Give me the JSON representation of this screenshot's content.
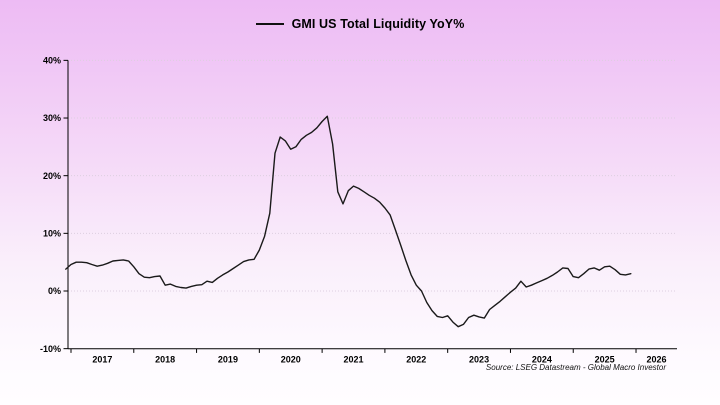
{
  "header": {
    "title": "GMI US Total Liquidity YoY%"
  },
  "footer": {
    "source": "Source: LSEG Datastream - Global Macro Investor"
  },
  "colors": {
    "background_top": "#edbbf4",
    "background_bottom": "#fffdff",
    "line": "#1a1a1a",
    "axis": "#000000",
    "gridline": "#ddcfe0",
    "text": "#000000"
  },
  "chart_data": {
    "type": "line",
    "title": "GMI US Total Liquidity YoY%",
    "xlabel": "",
    "ylabel": "",
    "x_range": [
      2016.95,
      2026.65
    ],
    "y_range": [
      -10,
      40
    ],
    "grid": "dotted horizontal gridlines every 10%",
    "legend_position": "top-center",
    "y_ticks": [
      {
        "value": 40,
        "label": "40%"
      },
      {
        "value": 30,
        "label": "30%"
      },
      {
        "value": 20,
        "label": "20%"
      },
      {
        "value": 10,
        "label": "10%"
      },
      {
        "value": 0,
        "label": "0%"
      },
      {
        "value": -10,
        "label": "-10%"
      }
    ],
    "x_ticks": [
      {
        "year": 2017,
        "label": "2017"
      },
      {
        "year": 2018,
        "label": "2018"
      },
      {
        "year": 2019,
        "label": "2019"
      },
      {
        "year": 2020,
        "label": "2020"
      },
      {
        "year": 2021,
        "label": "2021"
      },
      {
        "year": 2022,
        "label": "2022"
      },
      {
        "year": 2023,
        "label": "2023"
      },
      {
        "year": 2024,
        "label": "2024"
      },
      {
        "year": 2025,
        "label": "2025"
      },
      {
        "year": 2026,
        "label": "2026"
      }
    ],
    "series": [
      {
        "name": "GMI US Total Liquidity YoY%",
        "color": "#1a1a1a",
        "points": [
          [
            2016.917,
            3.8
          ],
          [
            2017.0,
            4.6
          ],
          [
            2017.083,
            5.0
          ],
          [
            2017.167,
            5.0
          ],
          [
            2017.25,
            4.9
          ],
          [
            2017.333,
            4.6
          ],
          [
            2017.417,
            4.3
          ],
          [
            2017.5,
            4.5
          ],
          [
            2017.583,
            4.8
          ],
          [
            2017.667,
            5.2
          ],
          [
            2017.75,
            5.3
          ],
          [
            2017.833,
            5.4
          ],
          [
            2017.917,
            5.2
          ],
          [
            2018.0,
            4.2
          ],
          [
            2018.083,
            3.0
          ],
          [
            2018.167,
            2.4
          ],
          [
            2018.25,
            2.3
          ],
          [
            2018.333,
            2.5
          ],
          [
            2018.417,
            2.6
          ],
          [
            2018.5,
            1.0
          ],
          [
            2018.583,
            1.2
          ],
          [
            2018.667,
            0.8
          ],
          [
            2018.75,
            0.6
          ],
          [
            2018.833,
            0.5
          ],
          [
            2018.917,
            0.8
          ],
          [
            2019.0,
            1.0
          ],
          [
            2019.083,
            1.1
          ],
          [
            2019.167,
            1.7
          ],
          [
            2019.25,
            1.5
          ],
          [
            2019.333,
            2.2
          ],
          [
            2019.417,
            2.8
          ],
          [
            2019.5,
            3.3
          ],
          [
            2019.583,
            3.9
          ],
          [
            2019.667,
            4.5
          ],
          [
            2019.75,
            5.1
          ],
          [
            2019.833,
            5.4
          ],
          [
            2019.917,
            5.5
          ],
          [
            2020.0,
            7.1
          ],
          [
            2020.083,
            9.5
          ],
          [
            2020.167,
            13.5
          ],
          [
            2020.25,
            23.9
          ],
          [
            2020.333,
            26.7
          ],
          [
            2020.417,
            26.0
          ],
          [
            2020.5,
            24.6
          ],
          [
            2020.583,
            25.0
          ],
          [
            2020.667,
            26.3
          ],
          [
            2020.75,
            27.0
          ],
          [
            2020.833,
            27.5
          ],
          [
            2020.917,
            28.3
          ],
          [
            2021.0,
            29.4
          ],
          [
            2021.083,
            30.3
          ],
          [
            2021.167,
            25.5
          ],
          [
            2021.25,
            17.2
          ],
          [
            2021.333,
            15.1
          ],
          [
            2021.417,
            17.4
          ],
          [
            2021.5,
            18.2
          ],
          [
            2021.583,
            17.8
          ],
          [
            2021.667,
            17.2
          ],
          [
            2021.75,
            16.6
          ],
          [
            2021.833,
            16.1
          ],
          [
            2021.917,
            15.4
          ],
          [
            2022.0,
            14.4
          ],
          [
            2022.083,
            13.2
          ],
          [
            2022.167,
            10.6
          ],
          [
            2022.25,
            8.0
          ],
          [
            2022.333,
            5.3
          ],
          [
            2022.417,
            2.8
          ],
          [
            2022.5,
            1.0
          ],
          [
            2022.583,
            0.0
          ],
          [
            2022.667,
            -2.0
          ],
          [
            2022.75,
            -3.4
          ],
          [
            2022.833,
            -4.4
          ],
          [
            2022.917,
            -4.6
          ],
          [
            2023.0,
            -4.3
          ],
          [
            2023.083,
            -5.4
          ],
          [
            2023.167,
            -6.2
          ],
          [
            2023.25,
            -5.8
          ],
          [
            2023.333,
            -4.6
          ],
          [
            2023.417,
            -4.2
          ],
          [
            2023.5,
            -4.5
          ],
          [
            2023.583,
            -4.7
          ],
          [
            2023.667,
            -3.2
          ],
          [
            2023.75,
            -2.5
          ],
          [
            2023.833,
            -1.8
          ],
          [
            2023.917,
            -1.0
          ],
          [
            2024.0,
            -0.2
          ],
          [
            2024.083,
            0.5
          ],
          [
            2024.167,
            1.7
          ],
          [
            2024.25,
            0.7
          ],
          [
            2024.333,
            1.0
          ],
          [
            2024.417,
            1.4
          ],
          [
            2024.5,
            1.8
          ],
          [
            2024.583,
            2.2
          ],
          [
            2024.667,
            2.7
          ],
          [
            2024.75,
            3.3
          ],
          [
            2024.833,
            4.0
          ],
          [
            2024.917,
            3.9
          ],
          [
            2025.0,
            2.5
          ],
          [
            2025.083,
            2.3
          ],
          [
            2025.167,
            3.0
          ],
          [
            2025.25,
            3.8
          ],
          [
            2025.333,
            4.0
          ],
          [
            2025.417,
            3.6
          ],
          [
            2025.5,
            4.2
          ],
          [
            2025.583,
            4.3
          ],
          [
            2025.667,
            3.7
          ],
          [
            2025.75,
            2.9
          ],
          [
            2025.833,
            2.8
          ],
          [
            2025.917,
            3.0
          ]
        ]
      }
    ]
  }
}
